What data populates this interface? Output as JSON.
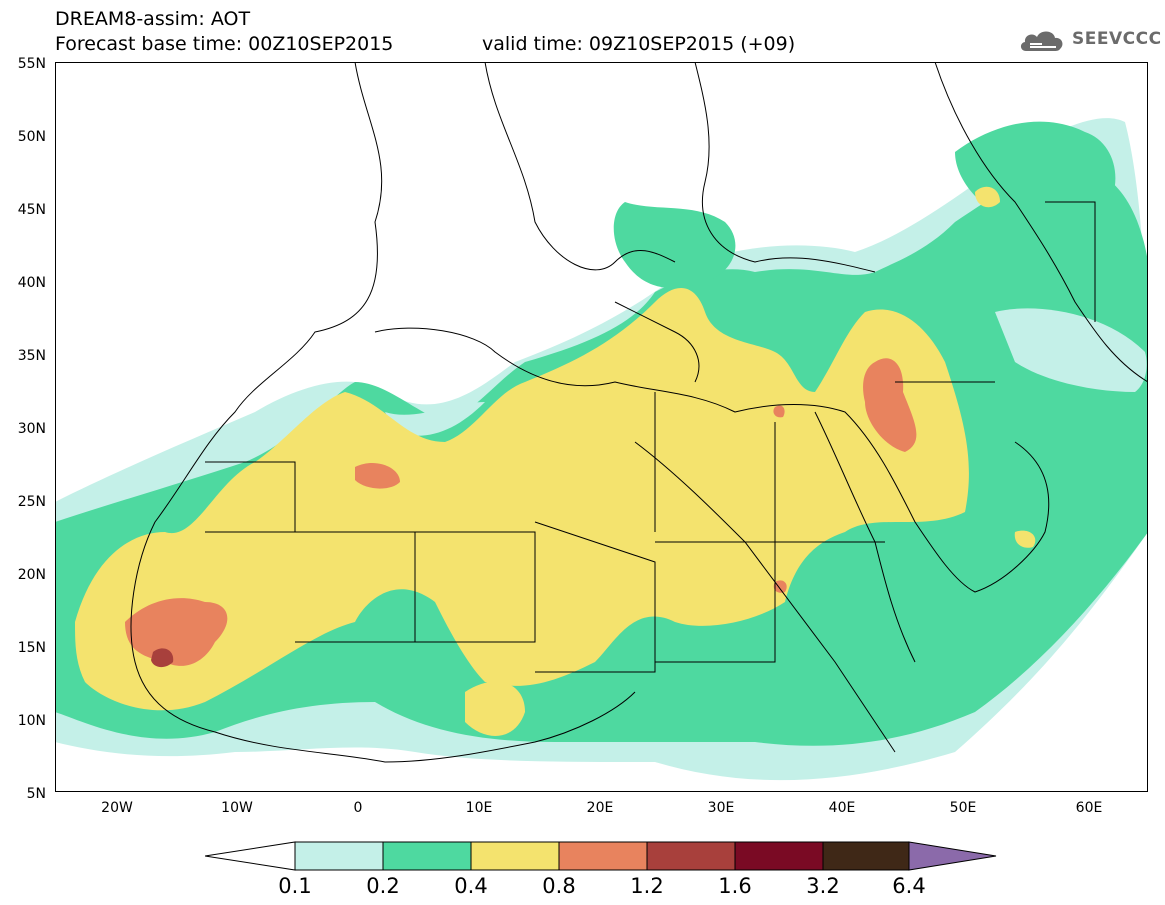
{
  "header": {
    "line1": "DREAM8-assim: AOT",
    "line2": "Forecast base time: 00Z10SEP2015",
    "valid": "valid time: 09Z10SEP2015 (+09)"
  },
  "logo": {
    "text": "SEEVCCC",
    "icon": "cloud-logo-icon"
  },
  "axes": {
    "y_labels": [
      "55N",
      "50N",
      "45N",
      "40N",
      "35N",
      "30N",
      "25N",
      "20N",
      "15N",
      "10N",
      "5N"
    ],
    "x_labels": [
      "20W",
      "10W",
      "0",
      "10E",
      "20E",
      "30E",
      "40E",
      "50E",
      "60E"
    ]
  },
  "colorbar": {
    "labels": [
      "0.1",
      "0.2",
      "0.4",
      "0.8",
      "1.2",
      "1.6",
      "3.2",
      "6.4"
    ],
    "colors": [
      "#ffffff",
      "#c4f0e8",
      "#4ed9a0",
      "#f4e36e",
      "#e8835e",
      "#a8403c",
      "#7a0a24",
      "#3f2817",
      "#8b6aaa"
    ]
  },
  "map_colors": {
    "c1": "#c4f0e8",
    "c2": "#4ed9a0",
    "c3": "#f4e36e",
    "c4": "#e8835e",
    "c5": "#a8403c"
  }
}
